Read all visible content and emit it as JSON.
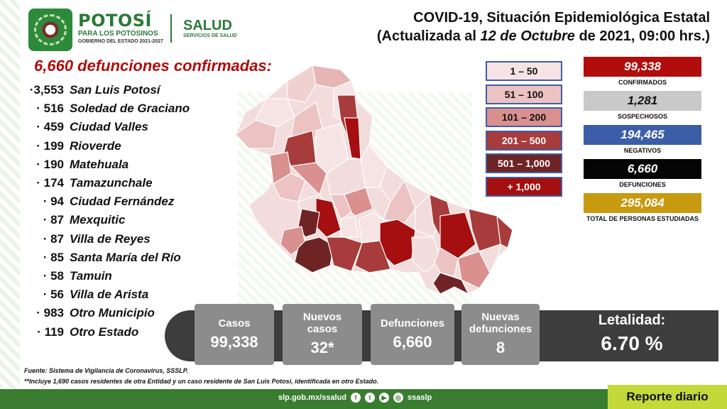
{
  "header": {
    "brand_name": "POTOSÍ",
    "brand_sub": "PARA LOS POTOSINOS",
    "brand_sub2": "GOBIERNO DEL ESTADO 2021-2027",
    "salud_name": "SALUD",
    "salud_sub": "SERVICIOS DE SALUD",
    "title_line1": "COVID-19, Situación Epidemiológica Estatal",
    "title_line2_prefix": "(Actualizada al ",
    "title_line2_date": "12 de Octubre",
    "title_line2_suffix": " de 2021, 09:00 hrs.)"
  },
  "deaths_heading": "6,660 defunciones confirmadas:",
  "municipalities": [
    {
      "count": "·3,553",
      "name": "San Luis Potosí"
    },
    {
      "count": "· 516",
      "name": "Soledad de Graciano"
    },
    {
      "count": "· 459",
      "name": "Ciudad Valles"
    },
    {
      "count": "· 199",
      "name": "Rioverde"
    },
    {
      "count": "· 190",
      "name": "Matehuala"
    },
    {
      "count": "· 174",
      "name": "Tamazunchale"
    },
    {
      "count": "· 94",
      "name": "Ciudad Fernández"
    },
    {
      "count": "· 87",
      "name": "Mexquitic"
    },
    {
      "count": "· 87",
      "name": "Villa de Reyes"
    },
    {
      "count": "· 85",
      "name": "Santa María del Río"
    },
    {
      "count": "· 58",
      "name": "Tamuin"
    },
    {
      "count": "· 56",
      "name": "Villa de Arista"
    },
    {
      "count": "· 983",
      "name": "Otro Municipio"
    },
    {
      "count": "· 119",
      "name": "Otro Estado"
    }
  ],
  "legend": [
    {
      "label": "1 – 50",
      "color": "#f7e3e3",
      "text": "#111111"
    },
    {
      "label": "51 – 100",
      "color": "#ecc2c2",
      "text": "#111111"
    },
    {
      "label": "101 – 200",
      "color": "#d9908f",
      "text": "#111111"
    },
    {
      "label": "201 – 500",
      "color": "#a83b3b",
      "text": "#ffffff"
    },
    {
      "label": "501 – 1,000",
      "color": "#6e2424",
      "text": "#ffffff"
    },
    {
      "label": "+ 1,000",
      "color": "#a50f0f",
      "text": "#ffffff"
    }
  ],
  "stats": [
    {
      "value": "99,338",
      "label": "CONFIRMADOS",
      "color": "#b10d0d"
    },
    {
      "value": "1,281",
      "label": "SOSPECHOSOS",
      "color": "#c9c9c9",
      "text": "#111111"
    },
    {
      "value": "194,465",
      "label": "NEGATIVOS",
      "color": "#3c5ea8"
    },
    {
      "value": "6,660",
      "label": "DEFUNCIONES",
      "color": "#050505"
    },
    {
      "value": "295,084",
      "label": "TOTAL DE PERSONAS ESTUDIADAS",
      "color": "#c79a10"
    }
  ],
  "bottom": {
    "casos_label": "Casos",
    "casos_value": "99,338",
    "nuevos_casos_label": "Nuevos casos",
    "nuevos_casos_value": "32*",
    "defunciones_label": "Defunciones",
    "defunciones_value": "6,660",
    "nuevas_def_label": "Nuevas defunciones",
    "nuevas_def_value": "8",
    "letalidad_label": "Letalidad:",
    "letalidad_value": "6.70 %"
  },
  "footnotes": {
    "source": "Fuente: Sistema de Vigilancia de Coronavirus, SSSLP.",
    "note": "**Incluye 1,690 casos residentes de otra Entidad y un caso residente de San Luis Potosí, identificada en otro Estado."
  },
  "footer": {
    "url": "slp.gob.mx/ssalud",
    "handle": "ssaslp",
    "report": "Reporte diario"
  },
  "colors": {
    "brand_green": "#2b7a38",
    "footer_green": "#3a7d31",
    "report_tag": "#c3d93a",
    "heading_red": "#b00d0d"
  }
}
